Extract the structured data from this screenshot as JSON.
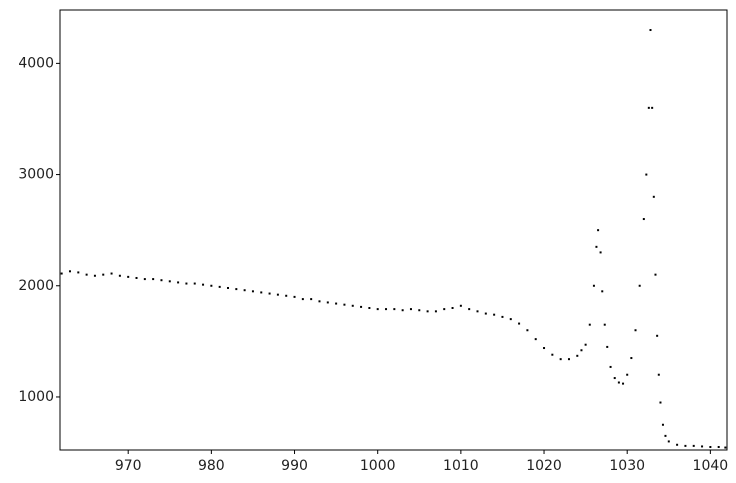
{
  "chart_data": {
    "type": "scatter",
    "color": "#000000",
    "x": [
      962,
      963,
      964,
      965,
      966,
      967,
      968,
      969,
      970,
      971,
      972,
      973,
      974,
      975,
      976,
      977,
      978,
      979,
      980,
      981,
      982,
      983,
      984,
      985,
      986,
      987,
      988,
      989,
      990,
      991,
      992,
      993,
      994,
      995,
      996,
      997,
      998,
      999,
      1000,
      1001,
      1002,
      1003,
      1004,
      1005,
      1006,
      1007,
      1008,
      1009,
      1010,
      1011,
      1012,
      1013,
      1014,
      1015,
      1016,
      1017,
      1018,
      1019,
      1020,
      1021,
      1022,
      1023,
      1024,
      1024.5,
      1025,
      1025.5,
      1026,
      1026.3,
      1026.5,
      1026.8,
      1027,
      1027.3,
      1027.6,
      1028,
      1028.5,
      1029,
      1029.5,
      1030,
      1030.5,
      1031,
      1031.5,
      1032,
      1032.3,
      1032.6,
      1032.8,
      1033,
      1033.2,
      1033.4,
      1033.6,
      1033.8,
      1034,
      1034.3,
      1034.6,
      1035,
      1036,
      1037,
      1038,
      1039,
      1040,
      1041,
      1041.8
    ],
    "values": [
      2110,
      2130,
      2120,
      2100,
      2090,
      2100,
      2110,
      2090,
      2080,
      2070,
      2060,
      2060,
      2050,
      2040,
      2030,
      2020,
      2020,
      2010,
      2000,
      1990,
      1980,
      1970,
      1960,
      1950,
      1940,
      1930,
      1920,
      1910,
      1900,
      1880,
      1880,
      1860,
      1850,
      1840,
      1830,
      1820,
      1810,
      1800,
      1790,
      1790,
      1790,
      1780,
      1790,
      1780,
      1770,
      1770,
      1790,
      1800,
      1820,
      1790,
      1770,
      1750,
      1740,
      1720,
      1700,
      1660,
      1600,
      1520,
      1440,
      1380,
      1340,
      1340,
      1370,
      1420,
      1470,
      1650,
      2000,
      2350,
      2500,
      2300,
      1950,
      1650,
      1450,
      1270,
      1170,
      1130,
      1120,
      1200,
      1350,
      1600,
      2000,
      2600,
      3000,
      3600,
      4300,
      3600,
      2800,
      2100,
      1550,
      1200,
      950,
      750,
      650,
      600,
      570,
      560,
      560,
      555,
      550,
      550,
      545
    ],
    "xlim": [
      961.8,
      1042
    ],
    "ylim": [
      523,
      4480
    ],
    "xticks": [
      970,
      980,
      990,
      1000,
      1010,
      1020,
      1030,
      1040
    ],
    "yticks": [
      1000,
      2000,
      3000,
      4000
    ]
  }
}
